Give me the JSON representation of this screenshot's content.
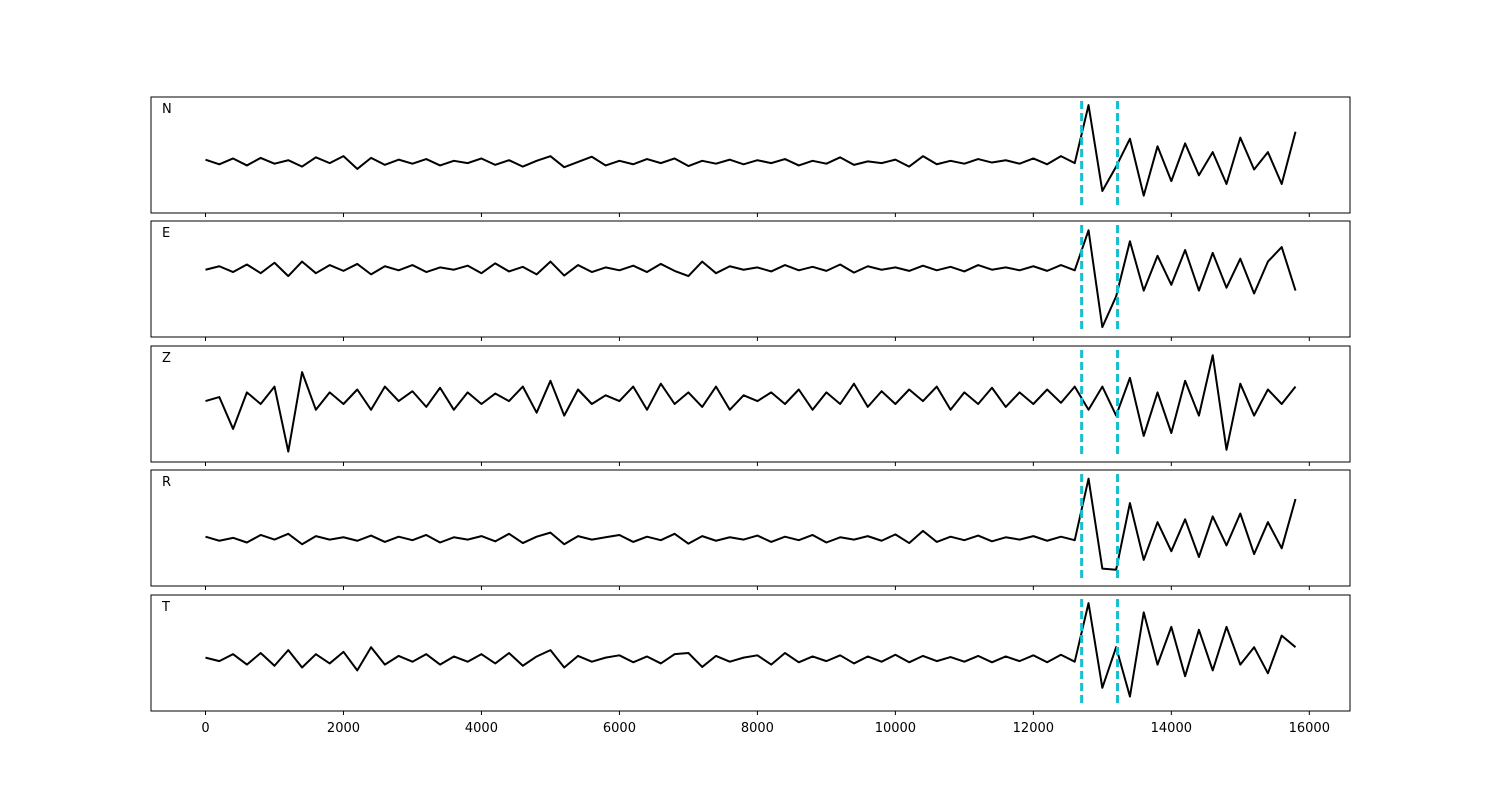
{
  "chart_data": [
    {
      "type": "line",
      "label": "N",
      "color": "#000000",
      "pick_color": "#17becf",
      "picks": [
        12700,
        13220
      ],
      "xlim": [
        -790,
        16590
      ],
      "xticks": [
        0,
        2000,
        4000,
        6000,
        8000,
        10000,
        12000,
        14000,
        16000
      ],
      "ylim": [
        -1,
        1
      ],
      "x": [
        0,
        200,
        400,
        600,
        800,
        1000,
        1200,
        1400,
        1600,
        1800,
        2000,
        2200,
        2400,
        2600,
        2800,
        3000,
        3200,
        3400,
        3600,
        3800,
        4000,
        4200,
        4400,
        4600,
        4800,
        5000,
        5200,
        5400,
        5600,
        5800,
        6000,
        6200,
        6400,
        6600,
        6800,
        7000,
        7200,
        7400,
        7600,
        7800,
        8000,
        8200,
        8400,
        8600,
        8800,
        9000,
        9200,
        9400,
        9600,
        9800,
        10000,
        10200,
        10400,
        10600,
        10800,
        11000,
        11200,
        11400,
        11600,
        11800,
        12000,
        12200,
        12400,
        12600,
        12800,
        13000,
        13200,
        13400,
        13600,
        13800,
        14000,
        14200,
        14400,
        14600,
        14800,
        15000,
        15200,
        15400,
        15600,
        15800
      ],
      "values": [
        -0.08,
        -0.16,
        -0.06,
        -0.18,
        -0.05,
        -0.15,
        -0.09,
        -0.2,
        -0.04,
        -0.14,
        -0.02,
        -0.24,
        -0.05,
        -0.17,
        -0.08,
        -0.15,
        -0.07,
        -0.18,
        -0.1,
        -0.14,
        -0.06,
        -0.17,
        -0.09,
        -0.2,
        -0.1,
        -0.02,
        -0.21,
        -0.12,
        -0.03,
        -0.18,
        -0.1,
        -0.16,
        -0.07,
        -0.14,
        -0.06,
        -0.19,
        -0.1,
        -0.15,
        -0.08,
        -0.16,
        -0.09,
        -0.14,
        -0.07,
        -0.18,
        -0.1,
        -0.15,
        -0.04,
        -0.17,
        -0.11,
        -0.14,
        -0.08,
        -0.2,
        -0.02,
        -0.16,
        -0.1,
        -0.15,
        -0.07,
        -0.13,
        -0.09,
        -0.15,
        -0.06,
        -0.16,
        -0.02,
        -0.14,
        0.86,
        -0.62,
        -0.2,
        0.28,
        -0.7,
        0.15,
        -0.45,
        0.2,
        -0.35,
        0.05,
        -0.5,
        0.3,
        -0.25,
        0.05,
        -0.5,
        0.4
      ]
    },
    {
      "type": "line",
      "label": "E",
      "color": "#000000",
      "pick_color": "#17becf",
      "picks": [
        12700,
        13220
      ],
      "xlim": [
        -790,
        16590
      ],
      "xticks": [
        0,
        2000,
        4000,
        6000,
        8000,
        10000,
        12000,
        14000,
        16000
      ],
      "ylim": [
        -1,
        1
      ],
      "x": [
        0,
        200,
        400,
        600,
        800,
        1000,
        1200,
        1400,
        1600,
        1800,
        2000,
        2200,
        2400,
        2600,
        2800,
        3000,
        3200,
        3400,
        3600,
        3800,
        4000,
        4200,
        4400,
        4600,
        4800,
        5000,
        5200,
        5400,
        5600,
        5800,
        6000,
        6200,
        6400,
        6600,
        6800,
        7000,
        7200,
        7400,
        7600,
        7800,
        8000,
        8200,
        8400,
        8600,
        8800,
        9000,
        9200,
        9400,
        9600,
        9800,
        10000,
        10200,
        10400,
        10600,
        10800,
        11000,
        11200,
        11400,
        11600,
        11800,
        12000,
        12200,
        12400,
        12600,
        12800,
        13000,
        13200,
        13400,
        13600,
        13800,
        14000,
        14200,
        14400,
        14600,
        14800,
        15000,
        15200,
        15400,
        15600,
        15800
      ],
      "values": [
        0.16,
        0.22,
        0.12,
        0.25,
        0.1,
        0.28,
        0.05,
        0.3,
        0.1,
        0.24,
        0.14,
        0.26,
        0.08,
        0.22,
        0.15,
        0.24,
        0.12,
        0.2,
        0.16,
        0.23,
        0.1,
        0.27,
        0.13,
        0.21,
        0.08,
        0.3,
        0.06,
        0.24,
        0.12,
        0.2,
        0.15,
        0.23,
        0.12,
        0.26,
        0.14,
        0.05,
        0.3,
        0.1,
        0.22,
        0.16,
        0.2,
        0.13,
        0.24,
        0.15,
        0.21,
        0.14,
        0.25,
        0.11,
        0.22,
        0.16,
        0.2,
        0.14,
        0.23,
        0.15,
        0.21,
        0.13,
        0.24,
        0.16,
        0.2,
        0.15,
        0.22,
        0.14,
        0.24,
        0.15,
        0.84,
        -0.83,
        -0.3,
        0.65,
        -0.2,
        0.4,
        -0.1,
        0.5,
        -0.2,
        0.45,
        -0.15,
        0.35,
        -0.25,
        0.3,
        0.55,
        -0.2
      ]
    },
    {
      "type": "line",
      "label": "Z",
      "color": "#000000",
      "pick_color": "#17becf",
      "picks": [
        12700,
        13220
      ],
      "xlim": [
        -790,
        16590
      ],
      "xticks": [
        0,
        2000,
        4000,
        6000,
        8000,
        10000,
        12000,
        14000,
        16000
      ],
      "ylim": [
        -1,
        1
      ],
      "x": [
        0,
        200,
        400,
        600,
        800,
        1000,
        1200,
        1400,
        1600,
        1800,
        2000,
        2200,
        2400,
        2600,
        2800,
        3000,
        3200,
        3400,
        3600,
        3800,
        4000,
        4200,
        4400,
        4600,
        4800,
        5000,
        5200,
        5400,
        5600,
        5800,
        6000,
        6200,
        6400,
        6600,
        6800,
        7000,
        7200,
        7400,
        7600,
        7800,
        8000,
        8200,
        8400,
        8600,
        8800,
        9000,
        9200,
        9400,
        9600,
        9800,
        10000,
        10200,
        10400,
        10600,
        10800,
        11000,
        11200,
        11400,
        11600,
        11800,
        12000,
        12200,
        12400,
        12600,
        12800,
        13000,
        13200,
        13400,
        13600,
        13800,
        14000,
        14200,
        14400,
        14600,
        14800,
        15000,
        15200,
        15400,
        15600,
        15800
      ],
      "values": [
        0.05,
        0.12,
        -0.43,
        0.2,
        0.0,
        0.3,
        -0.82,
        0.55,
        -0.1,
        0.2,
        0.0,
        0.25,
        -0.1,
        0.3,
        0.05,
        0.22,
        -0.05,
        0.28,
        -0.1,
        0.2,
        0.0,
        0.18,
        0.05,
        0.3,
        -0.15,
        0.4,
        -0.2,
        0.25,
        0.0,
        0.15,
        0.05,
        0.3,
        -0.1,
        0.35,
        0.0,
        0.2,
        -0.05,
        0.3,
        -0.1,
        0.15,
        0.05,
        0.2,
        0.0,
        0.25,
        -0.1,
        0.2,
        0.0,
        0.35,
        -0.05,
        0.22,
        0.0,
        0.25,
        0.05,
        0.3,
        -0.1,
        0.2,
        0.0,
        0.28,
        -0.05,
        0.2,
        0.0,
        0.25,
        0.02,
        0.3,
        -0.1,
        0.3,
        -0.2,
        0.45,
        -0.55,
        0.2,
        -0.5,
        0.4,
        -0.2,
        0.84,
        -0.79,
        0.35,
        -0.2,
        0.25,
        0.0,
        0.3
      ]
    },
    {
      "type": "line",
      "label": "R",
      "color": "#000000",
      "pick_color": "#17becf",
      "picks": [
        12700,
        13220
      ],
      "xlim": [
        -790,
        16590
      ],
      "xticks": [
        0,
        2000,
        4000,
        6000,
        8000,
        10000,
        12000,
        14000,
        16000
      ],
      "ylim": [
        -1,
        1
      ],
      "x": [
        0,
        200,
        400,
        600,
        800,
        1000,
        1200,
        1400,
        1600,
        1800,
        2000,
        2200,
        2400,
        2600,
        2800,
        3000,
        3200,
        3400,
        3600,
        3800,
        4000,
        4200,
        4400,
        4600,
        4800,
        5000,
        5200,
        5400,
        5600,
        5800,
        6000,
        6200,
        6400,
        6600,
        6800,
        7000,
        7200,
        7400,
        7600,
        7800,
        8000,
        8200,
        8400,
        8600,
        8800,
        9000,
        9200,
        9400,
        9600,
        9800,
        10000,
        10200,
        10400,
        10600,
        10800,
        11000,
        11200,
        11400,
        11600,
        11800,
        12000,
        12200,
        12400,
        12600,
        12800,
        13000,
        13200,
        13400,
        13600,
        13800,
        14000,
        14200,
        14400,
        14600,
        14800,
        15000,
        15200,
        15400,
        15600,
        15800
      ],
      "values": [
        -0.15,
        -0.22,
        -0.17,
        -0.25,
        -0.12,
        -0.2,
        -0.1,
        -0.28,
        -0.14,
        -0.2,
        -0.16,
        -0.22,
        -0.13,
        -0.24,
        -0.15,
        -0.21,
        -0.12,
        -0.25,
        -0.16,
        -0.2,
        -0.14,
        -0.23,
        -0.1,
        -0.26,
        -0.15,
        -0.08,
        -0.28,
        -0.14,
        -0.2,
        -0.16,
        -0.12,
        -0.24,
        -0.15,
        -0.21,
        -0.1,
        -0.27,
        -0.14,
        -0.22,
        -0.16,
        -0.2,
        -0.13,
        -0.24,
        -0.15,
        -0.21,
        -0.12,
        -0.25,
        -0.16,
        -0.2,
        -0.14,
        -0.22,
        -0.11,
        -0.26,
        -0.05,
        -0.24,
        -0.15,
        -0.21,
        -0.13,
        -0.23,
        -0.16,
        -0.2,
        -0.14,
        -0.22,
        -0.15,
        -0.21,
        0.85,
        -0.7,
        -0.72,
        0.43,
        -0.55,
        0.1,
        -0.4,
        0.15,
        -0.5,
        0.2,
        -0.3,
        0.25,
        -0.45,
        0.1,
        -0.35,
        0.5
      ]
    },
    {
      "type": "line",
      "label": "T",
      "color": "#000000",
      "pick_color": "#17becf",
      "picks": [
        12700,
        13220
      ],
      "xlim": [
        -790,
        16590
      ],
      "xticks": [
        0,
        2000,
        4000,
        6000,
        8000,
        10000,
        12000,
        14000,
        16000
      ],
      "ylim": [
        -1,
        1
      ],
      "x": [
        0,
        200,
        400,
        600,
        800,
        1000,
        1200,
        1400,
        1600,
        1800,
        2000,
        2200,
        2400,
        2600,
        2800,
        3000,
        3200,
        3400,
        3600,
        3800,
        4000,
        4200,
        4400,
        4600,
        4800,
        5000,
        5200,
        5400,
        5600,
        5800,
        6000,
        6200,
        6400,
        6600,
        6800,
        7000,
        7200,
        7400,
        7600,
        7800,
        8000,
        8200,
        8400,
        8600,
        8800,
        9000,
        9200,
        9400,
        9600,
        9800,
        10000,
        10200,
        10400,
        10600,
        10800,
        11000,
        11200,
        11400,
        11600,
        11800,
        12000,
        12200,
        12400,
        12600,
        12800,
        13000,
        13200,
        13400,
        13600,
        13800,
        14000,
        14200,
        14400,
        14600,
        14800,
        15000,
        15200,
        15400,
        15600,
        15800
      ],
      "values": [
        -0.08,
        -0.14,
        -0.02,
        -0.2,
        0.0,
        -0.22,
        0.05,
        -0.25,
        -0.02,
        -0.18,
        0.02,
        -0.3,
        0.1,
        -0.2,
        -0.05,
        -0.15,
        -0.02,
        -0.2,
        -0.06,
        -0.15,
        -0.02,
        -0.18,
        0.0,
        -0.22,
        -0.06,
        0.05,
        -0.25,
        -0.05,
        -0.15,
        -0.08,
        -0.04,
        -0.16,
        -0.06,
        -0.18,
        -0.02,
        0.0,
        -0.24,
        -0.05,
        -0.15,
        -0.08,
        -0.04,
        -0.2,
        0.0,
        -0.16,
        -0.06,
        -0.14,
        -0.04,
        -0.18,
        -0.06,
        -0.15,
        -0.03,
        -0.16,
        -0.05,
        -0.14,
        -0.07,
        -0.15,
        -0.05,
        -0.16,
        -0.06,
        -0.14,
        -0.04,
        -0.16,
        -0.03,
        -0.15,
        0.86,
        -0.6,
        0.1,
        -0.75,
        0.7,
        -0.2,
        0.45,
        -0.4,
        0.4,
        -0.3,
        0.45,
        -0.2,
        0.1,
        -0.35,
        0.3,
        0.1
      ]
    }
  ]
}
